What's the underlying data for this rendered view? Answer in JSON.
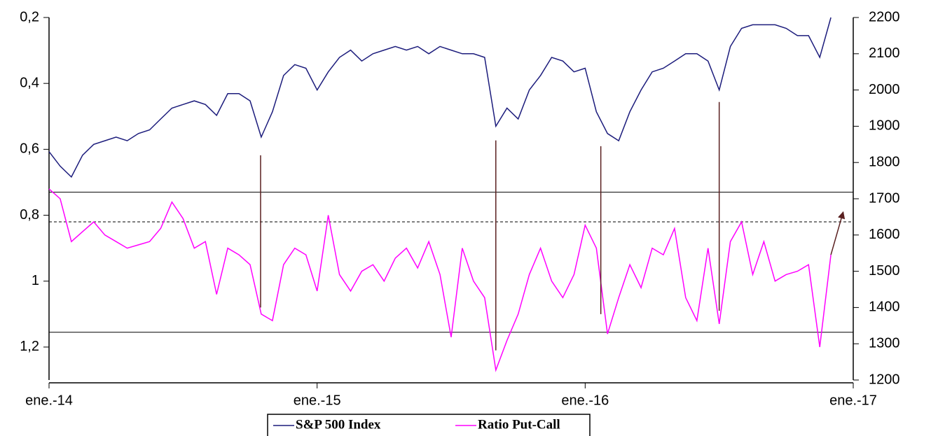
{
  "chart_data": {
    "type": "line",
    "x": [
      0,
      0.5,
      1,
      1.5,
      2,
      2.5,
      3,
      3.5,
      4,
      4.5,
      5,
      5.5,
      6,
      6.5,
      7,
      7.5,
      8,
      8.5,
      9,
      9.5,
      10,
      10.5,
      11,
      11.5,
      12,
      12.5,
      13,
      13.5,
      14,
      14.5,
      15,
      15.5,
      16,
      16.5,
      17,
      17.5,
      18,
      18.5,
      19,
      19.5,
      20,
      20.5,
      21,
      21.5,
      22,
      22.5,
      23,
      23.5,
      24,
      24.5,
      25,
      25.5,
      26,
      26.5,
      27,
      27.5,
      28,
      28.5,
      29,
      29.5,
      30,
      30.5,
      31,
      31.5,
      32,
      32.5,
      33,
      33.5,
      34,
      34.5,
      35
    ],
    "xlim": [
      0,
      36
    ],
    "xticks": [
      {
        "value": 0,
        "label": "ene.-14"
      },
      {
        "value": 12,
        "label": "ene.-15"
      },
      {
        "value": 24,
        "label": "ene.-16"
      },
      {
        "value": 36,
        "label": "ene.-17"
      }
    ],
    "ylim": [
      0.2,
      1.3
    ],
    "y_inverted": true,
    "yticks": [
      {
        "value": 0.2,
        "label": "0,2"
      },
      {
        "value": 0.4,
        "label": "0,4"
      },
      {
        "value": 0.6,
        "label": "0,6"
      },
      {
        "value": 0.8,
        "label": "0,8"
      },
      1,
      {
        "value": 1.2,
        "label": "1,2"
      }
    ],
    "y2lim": [
      1200,
      2200
    ],
    "y2ticks": [
      1200,
      1300,
      1400,
      1500,
      1600,
      1700,
      1800,
      1900,
      2000,
      2100,
      2200
    ],
    "series": [
      {
        "name": "S&P 500 Index",
        "color": "#1c1c7c",
        "axis": "y2",
        "values": [
          1830,
          1790,
          1760,
          1820,
          1850,
          1860,
          1870,
          1860,
          1880,
          1890,
          1920,
          1950,
          1960,
          1970,
          1960,
          1930,
          1990,
          1990,
          1970,
          1870,
          1940,
          2040,
          2070,
          2060,
          2000,
          2050,
          2090,
          2110,
          2080,
          2100,
          2110,
          2120,
          2110,
          2120,
          2100,
          2120,
          2110,
          2100,
          2100,
          2090,
          1900,
          1950,
          1920,
          2000,
          2040,
          2090,
          2080,
          2050,
          2060,
          1940,
          1880,
          1860,
          1940,
          2000,
          2050,
          2060,
          2080,
          2100,
          2100,
          2080,
          2000,
          2120,
          2170,
          2180,
          2180,
          2180,
          2170,
          2150,
          2150,
          2090,
          2200
        ]
      },
      {
        "name": "Ratio Put-Call",
        "color": "#ff00ff",
        "values": [
          0.72,
          0.75,
          0.88,
          0.85,
          0.82,
          0.86,
          0.88,
          0.9,
          0.89,
          0.88,
          0.84,
          0.76,
          0.81,
          0.9,
          0.88,
          1.04,
          0.9,
          0.92,
          0.95,
          1.1,
          1.12,
          0.95,
          0.9,
          0.92,
          1.03,
          0.8,
          0.98,
          1.03,
          0.97,
          0.95,
          1.0,
          0.93,
          0.9,
          0.96,
          0.88,
          0.98,
          1.17,
          0.9,
          1.0,
          1.05,
          1.27,
          1.18,
          1.1,
          0.98,
          0.9,
          1.0,
          1.05,
          0.98,
          0.83,
          0.9,
          1.16,
          1.05,
          0.95,
          1.02,
          0.9,
          0.92,
          0.84,
          1.05,
          1.12,
          0.9,
          1.13,
          0.88,
          0.82,
          0.98,
          0.88,
          1.0,
          0.98,
          0.97,
          0.95,
          1.2,
          0.92
        ]
      }
    ],
    "hlines": [
      {
        "value": 0.73,
        "style": "solid"
      },
      {
        "value": 0.82,
        "style": "dashed"
      },
      {
        "value": 1.155,
        "style": "solid"
      }
    ],
    "vlines": [
      {
        "x": 9.47,
        "y2": 1820,
        "y": 1.08
      },
      {
        "x": 20.0,
        "y2": 1861,
        "y": 1.21
      },
      {
        "x": 24.7,
        "y2": 1845,
        "y": 1.1
      },
      {
        "x": 30.0,
        "y2": 1967,
        "y": 1.09
      }
    ],
    "vline_color": "#5a2020",
    "arrow": {
      "x": [
        35,
        35.55
      ],
      "values": [
        0.92,
        0.79
      ]
    },
    "legend": "bottom"
  }
}
